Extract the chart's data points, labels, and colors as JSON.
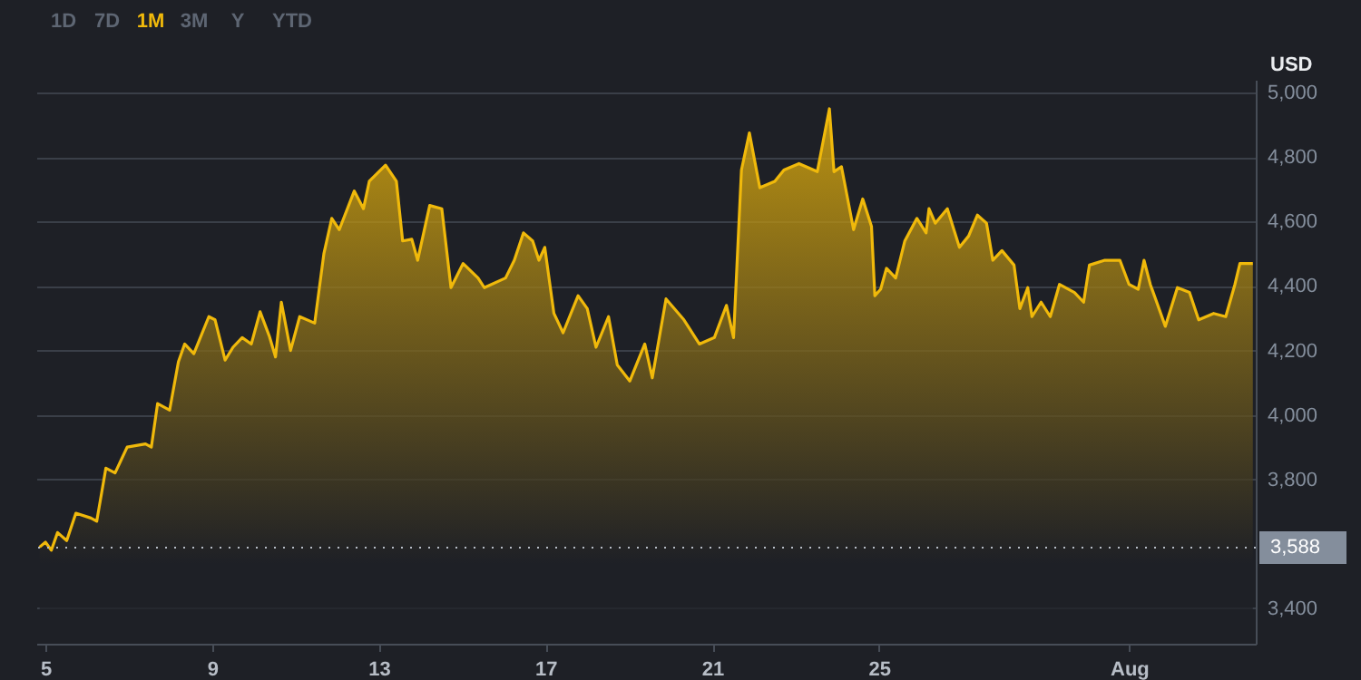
{
  "chart_data": {
    "type": "area",
    "ylabel": "USD",
    "annotations": [
      "1D",
      "7D",
      "1M",
      "3M",
      "Y",
      "YTD"
    ],
    "x": [
      4.86,
      5.0,
      5.14,
      5.29,
      5.51,
      5.73,
      6.09,
      6.23,
      6.45,
      6.67,
      6.96,
      7.4,
      7.54,
      7.69,
      7.98,
      8.19,
      8.34,
      8.56,
      8.92,
      9.07,
      9.31,
      9.5,
      9.72,
      9.94,
      10.15,
      10.37,
      10.52,
      10.66,
      10.88,
      11.1,
      11.46,
      11.68,
      11.87,
      12.05,
      12.41,
      12.63,
      12.77,
      13.16,
      13.42,
      13.57,
      13.79,
      13.93,
      14.22,
      14.51,
      14.73,
      15.02,
      15.38,
      15.53,
      16.04,
      16.25,
      16.47,
      16.69,
      16.84,
      16.98,
      17.2,
      17.42,
      17.78,
      18.0,
      18.21,
      18.51,
      18.72,
      19.02,
      19.38,
      19.56,
      19.89,
      20.32,
      20.69,
      21.05,
      21.34,
      21.51,
      21.7,
      21.89,
      22.14,
      22.5,
      22.72,
      23.08,
      23.52,
      23.81,
      23.92,
      24.1,
      24.39,
      24.61,
      24.82,
      24.9,
      25.04,
      25.18,
      25.4,
      25.62,
      25.91,
      26.13,
      26.2,
      26.35,
      26.64,
      26.93,
      27.15,
      27.36,
      27.58,
      27.73,
      27.95,
      28.24,
      28.38,
      28.57,
      28.67,
      28.89,
      29.11,
      29.33,
      29.69,
      29.91,
      30.05,
      30.42,
      30.78,
      31.0,
      31.22,
      31.36,
      31.51,
      31.87,
      32.16,
      32.45,
      32.67,
      33.03,
      33.32,
      33.54,
      33.66,
      33.97
    ],
    "series": [
      {
        "color": "#f0b90b",
        "values": [
          3590,
          3605,
          3580,
          3635,
          3610,
          3695,
          3680,
          3670,
          3835,
          3820,
          3900,
          3910,
          3900,
          4035,
          4015,
          4165,
          4220,
          4190,
          4305,
          4295,
          4170,
          4210,
          4240,
          4220,
          4320,
          4245,
          4180,
          4350,
          4200,
          4305,
          4285,
          4500,
          4610,
          4575,
          4695,
          4640,
          4725,
          4775,
          4725,
          4540,
          4545,
          4480,
          4650,
          4640,
          4395,
          4470,
          4425,
          4395,
          4425,
          4480,
          4565,
          4540,
          4480,
          4520,
          4315,
          4255,
          4370,
          4330,
          4210,
          4305,
          4155,
          4105,
          4220,
          4115,
          4360,
          4295,
          4220,
          4240,
          4340,
          4240,
          4760,
          4875,
          4705,
          4725,
          4760,
          4780,
          4755,
          4950,
          4755,
          4770,
          4575,
          4670,
          4585,
          4370,
          4390,
          4455,
          4425,
          4540,
          4610,
          4565,
          4640,
          4595,
          4640,
          4520,
          4555,
          4620,
          4595,
          4480,
          4510,
          4465,
          4330,
          4395,
          4305,
          4350,
          4305,
          4405,
          4380,
          4350,
          4465,
          4480,
          4480,
          4405,
          4390,
          4480,
          4405,
          4275,
          4395,
          4380,
          4295,
          4315,
          4305,
          4405,
          4470,
          4470
        ]
      }
    ],
    "xlim": [
      4.78,
      34.04
    ],
    "xticks": [
      5,
      9,
      13,
      17,
      21,
      25,
      {
        "value": 31.0,
        "label": "Aug"
      }
    ],
    "ylim": [
      3290,
      5040
    ],
    "yticks": [
      {
        "value": 3400,
        "label": "3,400"
      },
      {
        "value": 3800,
        "label": "3,800"
      },
      {
        "value": 4000,
        "label": "4,000"
      },
      {
        "value": 4200,
        "label": "4,200"
      },
      {
        "value": 4400,
        "label": "4,400"
      },
      {
        "value": 4600,
        "label": "4,600"
      },
      {
        "value": 4800,
        "label": "4,800"
      },
      {
        "value": 5000,
        "label": "5,000"
      }
    ],
    "grid": "y",
    "ref_lines": [
      {
        "axis": "y",
        "value": 3588,
        "label": "3,588",
        "color": "#b7bdc6",
        "line_style": "dotted"
      }
    ]
  }
}
